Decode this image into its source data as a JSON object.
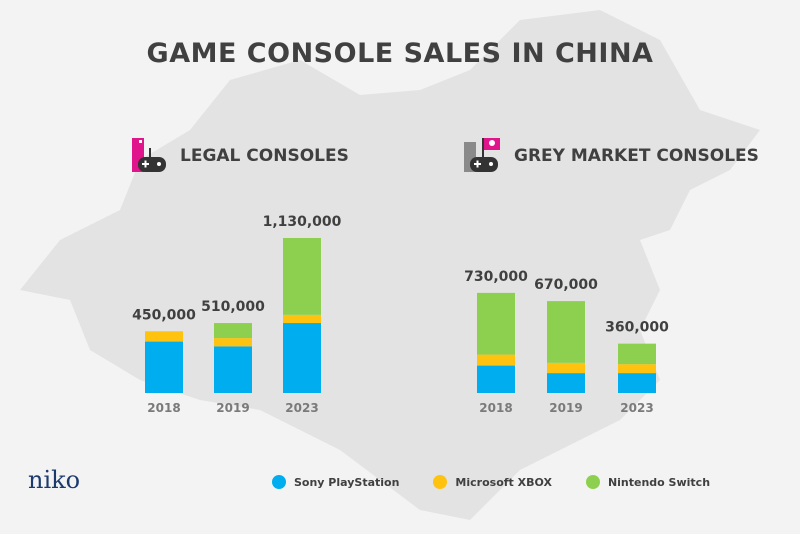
{
  "title": "GAME CONSOLE SALES IN CHINA",
  "logo": "niko",
  "colors": {
    "sony": "#00adef",
    "xbox": "#ffc20e",
    "nintendo": "#8dd04f",
    "icon_legal": "#e0158c",
    "icon_grey": "#8a8a8a",
    "text": "#404040"
  },
  "chart_data": [
    {
      "type": "bar",
      "stacked": true,
      "title": "LEGAL CONSOLES",
      "categories": [
        "2018",
        "2019",
        "2023"
      ],
      "totals": [
        "450,000",
        "510,000",
        "1,130,000"
      ],
      "series": [
        {
          "name": "Sony PlayStation",
          "values": [
            375000,
            340000,
            510000
          ]
        },
        {
          "name": "Microsoft XBOX",
          "values": [
            75000,
            60000,
            60000
          ]
        },
        {
          "name": "Nintendo Switch",
          "values": [
            0,
            110000,
            560000
          ]
        }
      ]
    },
    {
      "type": "bar",
      "stacked": true,
      "title": "GREY MARKET CONSOLES",
      "categories": [
        "2018",
        "2019",
        "2023"
      ],
      "totals": [
        "730,000",
        "670,000",
        "360,000"
      ],
      "series": [
        {
          "name": "Sony PlayStation",
          "values": [
            200000,
            145000,
            145000
          ]
        },
        {
          "name": "Microsoft XBOX",
          "values": [
            80000,
            75000,
            65000
          ]
        },
        {
          "name": "Nintendo Switch",
          "values": [
            450000,
            450000,
            150000
          ]
        }
      ]
    }
  ],
  "legend": [
    "Sony PlayStation",
    "Microsoft XBOX",
    "Nintendo Switch"
  ]
}
